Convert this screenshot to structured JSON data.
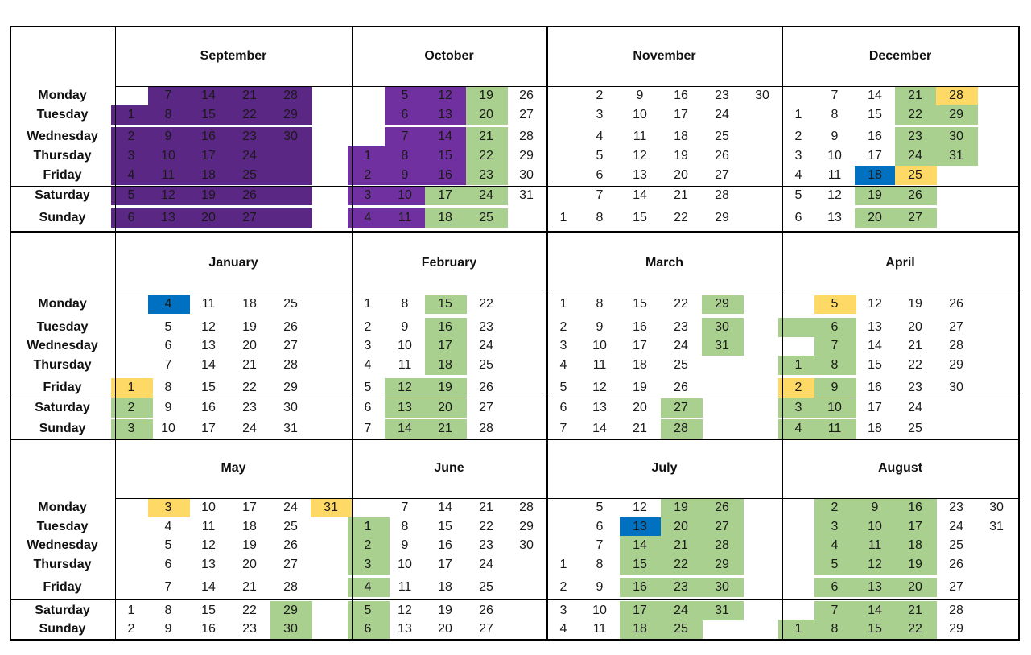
{
  "colors": {
    "dark_purple": "#5b2785",
    "purple": "#7030a0",
    "green": "#a9d08e",
    "yellow": "#ffd966",
    "blue": "#0070c0"
  },
  "day_labels": [
    "Monday",
    "Tuesday",
    "Wednesday",
    "Thursday",
    "Friday",
    "Saturday",
    "Sunday"
  ],
  "months": [
    {
      "name": "September",
      "weeks": [
        [
          "",
          "1",
          "2",
          "3",
          "4",
          "5",
          "6"
        ],
        [
          "7",
          "8",
          "9",
          "10",
          "11",
          "12",
          "13"
        ],
        [
          "14",
          "15",
          "16",
          "17",
          "18",
          "19",
          "20"
        ],
        [
          "21",
          "22",
          "23",
          "24",
          "25",
          "26",
          "27"
        ],
        [
          "28",
          "29",
          "30",
          "",
          "",
          "",
          ""
        ],
        [
          "",
          "",
          "",
          "",
          "",
          "",
          ""
        ]
      ],
      "highlights": [
        [
          null,
          "dark_purple",
          "dark_purple",
          "dark_purple",
          "dark_purple",
          "dark_purple",
          "dark_purple"
        ],
        [
          "dark_purple",
          "dark_purple",
          "dark_purple",
          "dark_purple",
          "dark_purple",
          "dark_purple",
          "dark_purple"
        ],
        [
          "dark_purple",
          "dark_purple",
          "dark_purple",
          "dark_purple",
          "dark_purple",
          "dark_purple",
          "dark_purple"
        ],
        [
          "dark_purple",
          "dark_purple",
          "dark_purple",
          "dark_purple",
          "dark_purple",
          "dark_purple",
          "dark_purple"
        ],
        [
          "dark_purple",
          "dark_purple",
          "dark_purple",
          "dark_purple",
          "dark_purple",
          "dark_purple",
          "dark_purple"
        ],
        [
          null,
          null,
          null,
          null,
          null,
          null,
          null
        ]
      ]
    },
    {
      "name": "October",
      "weeks": [
        [
          "",
          "",
          "",
          "1",
          "2",
          "3",
          "4"
        ],
        [
          "5",
          "6",
          "7",
          "8",
          "9",
          "10",
          "11"
        ],
        [
          "12",
          "13",
          "14",
          "15",
          "16",
          "17",
          "18"
        ],
        [
          "19",
          "20",
          "21",
          "22",
          "23",
          "24",
          "25"
        ],
        [
          "26",
          "27",
          "28",
          "29",
          "30",
          "31",
          ""
        ]
      ],
      "highlights": [
        [
          null,
          null,
          null,
          "purple",
          "purple",
          "purple",
          "purple"
        ],
        [
          "purple",
          "purple",
          "purple",
          "purple",
          "purple",
          "purple",
          "purple"
        ],
        [
          "purple",
          "purple",
          "purple",
          "purple",
          "purple",
          "green",
          "green"
        ],
        [
          "green",
          "green",
          "green",
          "green",
          "green",
          "green",
          "green"
        ],
        [
          null,
          null,
          null,
          null,
          null,
          null,
          null
        ]
      ]
    },
    {
      "name": "November",
      "weeks": [
        [
          "",
          "",
          "",
          "",
          "",
          "",
          "1"
        ],
        [
          "2",
          "3",
          "4",
          "5",
          "6",
          "7",
          "8"
        ],
        [
          "9",
          "10",
          "11",
          "12",
          "13",
          "14",
          "15"
        ],
        [
          "16",
          "17",
          "18",
          "19",
          "20",
          "21",
          "22"
        ],
        [
          "23",
          "24",
          "25",
          "26",
          "27",
          "28",
          "29"
        ],
        [
          "30",
          "",
          "",
          "",
          "",
          "",
          ""
        ]
      ],
      "highlights": [
        [
          null,
          null,
          null,
          null,
          null,
          null,
          null
        ],
        [
          null,
          null,
          null,
          null,
          null,
          null,
          null
        ],
        [
          null,
          null,
          null,
          null,
          null,
          null,
          null
        ],
        [
          null,
          null,
          null,
          null,
          null,
          null,
          null
        ],
        [
          null,
          null,
          null,
          null,
          null,
          null,
          null
        ],
        [
          null,
          null,
          null,
          null,
          null,
          null,
          null
        ]
      ]
    },
    {
      "name": "December",
      "weeks": [
        [
          "",
          "1",
          "2",
          "3",
          "4",
          "5",
          "6"
        ],
        [
          "7",
          "8",
          "9",
          "10",
          "11",
          "12",
          "13"
        ],
        [
          "14",
          "15",
          "16",
          "17",
          "18",
          "19",
          "20"
        ],
        [
          "21",
          "22",
          "23",
          "24",
          "25",
          "26",
          "27"
        ],
        [
          "28",
          "29",
          "30",
          "31",
          "",
          "",
          ""
        ]
      ],
      "highlights": [
        [
          null,
          null,
          null,
          null,
          null,
          null,
          null
        ],
        [
          null,
          null,
          null,
          null,
          null,
          null,
          null
        ],
        [
          null,
          null,
          null,
          null,
          "blue",
          "green",
          "green"
        ],
        [
          "green",
          "green",
          "green",
          "green",
          "yellow",
          "green",
          "green"
        ],
        [
          "yellow",
          "green",
          "green",
          "green",
          null,
          null,
          null
        ]
      ]
    },
    {
      "name": "January",
      "weeks": [
        [
          "",
          "",
          "",
          "",
          "1",
          "2",
          "3"
        ],
        [
          "4",
          "5",
          "6",
          "7",
          "8",
          "9",
          "10"
        ],
        [
          "11",
          "12",
          "13",
          "14",
          "15",
          "16",
          "17"
        ],
        [
          "18",
          "19",
          "20",
          "21",
          "22",
          "23",
          "24"
        ],
        [
          "25",
          "26",
          "27",
          "28",
          "29",
          "30",
          "31"
        ]
      ],
      "highlights": [
        [
          null,
          null,
          null,
          null,
          "yellow",
          "green",
          "green"
        ],
        [
          "blue",
          null,
          null,
          null,
          null,
          null,
          null
        ],
        [
          null,
          null,
          null,
          null,
          null,
          null,
          null
        ],
        [
          null,
          null,
          null,
          null,
          null,
          null,
          null
        ],
        [
          null,
          null,
          null,
          null,
          null,
          null,
          null
        ]
      ]
    },
    {
      "name": "February",
      "weeks": [
        [
          "1",
          "2",
          "3",
          "4",
          "5",
          "6",
          "7"
        ],
        [
          "8",
          "9",
          "10",
          "11",
          "12",
          "13",
          "14"
        ],
        [
          "15",
          "16",
          "17",
          "18",
          "19",
          "20",
          "21"
        ],
        [
          "22",
          "23",
          "24",
          "25",
          "26",
          "27",
          "28"
        ]
      ],
      "highlights": [
        [
          null,
          null,
          null,
          null,
          null,
          null,
          null
        ],
        [
          null,
          null,
          null,
          null,
          "green",
          "green",
          "green"
        ],
        [
          "green",
          "green",
          "green",
          "green",
          "green",
          "green",
          "green"
        ],
        [
          null,
          null,
          null,
          null,
          null,
          null,
          null
        ]
      ]
    },
    {
      "name": "March",
      "weeks": [
        [
          "1",
          "2",
          "3",
          "4",
          "5",
          "6",
          "7"
        ],
        [
          "8",
          "9",
          "10",
          "11",
          "12",
          "13",
          "14"
        ],
        [
          "15",
          "16",
          "17",
          "18",
          "19",
          "20",
          "21"
        ],
        [
          "22",
          "23",
          "24",
          "25",
          "26",
          "27",
          "28"
        ],
        [
          "29",
          "30",
          "31",
          "",
          "",
          "",
          ""
        ]
      ],
      "highlights": [
        [
          null,
          null,
          null,
          null,
          null,
          null,
          null
        ],
        [
          null,
          null,
          null,
          null,
          null,
          null,
          null
        ],
        [
          null,
          null,
          null,
          null,
          null,
          null,
          null
        ],
        [
          null,
          null,
          null,
          null,
          null,
          "green",
          "green"
        ],
        [
          "green",
          "green",
          "green",
          null,
          null,
          null,
          null
        ]
      ]
    },
    {
      "name": "April",
      "weeks": [
        [
          "",
          "",
          "",
          "1",
          "2",
          "3",
          "4"
        ],
        [
          "5",
          "6",
          "7",
          "8",
          "9",
          "10",
          "11"
        ],
        [
          "12",
          "13",
          "14",
          "15",
          "16",
          "17",
          "18"
        ],
        [
          "19",
          "20",
          "21",
          "22",
          "23",
          "24",
          "25"
        ],
        [
          "26",
          "27",
          "28",
          "29",
          "30",
          "",
          ""
        ]
      ],
      "highlights": [
        [
          null,
          "green",
          null,
          "green",
          "yellow",
          "green",
          "green"
        ],
        [
          "yellow",
          "green",
          "green",
          "green",
          "green",
          "green",
          "green"
        ],
        [
          null,
          null,
          null,
          null,
          null,
          null,
          null
        ],
        [
          null,
          null,
          null,
          null,
          null,
          null,
          null
        ],
        [
          null,
          null,
          null,
          null,
          null,
          null,
          null
        ]
      ]
    },
    {
      "name": "May",
      "weeks": [
        [
          "",
          "",
          "",
          "",
          "",
          "1",
          "2"
        ],
        [
          "3",
          "4",
          "5",
          "6",
          "7",
          "8",
          "9"
        ],
        [
          "10",
          "11",
          "12",
          "13",
          "14",
          "15",
          "16"
        ],
        [
          "17",
          "18",
          "19",
          "20",
          "21",
          "22",
          "23"
        ],
        [
          "24",
          "25",
          "26",
          "27",
          "28",
          "29",
          "30"
        ],
        [
          "31",
          "",
          "",
          "",
          "",
          "",
          ""
        ]
      ],
      "highlights": [
        [
          null,
          null,
          null,
          null,
          null,
          null,
          null
        ],
        [
          "yellow",
          null,
          null,
          null,
          null,
          null,
          null
        ],
        [
          null,
          null,
          null,
          null,
          null,
          null,
          null
        ],
        [
          null,
          null,
          null,
          null,
          null,
          null,
          null
        ],
        [
          null,
          null,
          null,
          null,
          null,
          "green",
          "green"
        ],
        [
          "yellow",
          null,
          null,
          null,
          null,
          null,
          null
        ]
      ]
    },
    {
      "name": "June",
      "weeks": [
        [
          "",
          "1",
          "2",
          "3",
          "4",
          "5",
          "6"
        ],
        [
          "7",
          "8",
          "9",
          "10",
          "11",
          "12",
          "13"
        ],
        [
          "14",
          "15",
          "16",
          "17",
          "18",
          "19",
          "20"
        ],
        [
          "21",
          "22",
          "23",
          "24",
          "25",
          "26",
          "27"
        ],
        [
          "28",
          "29",
          "30",
          "",
          "",
          "",
          ""
        ]
      ],
      "highlights": [
        [
          null,
          "green",
          "green",
          "green",
          "green",
          "green",
          "green"
        ],
        [
          null,
          null,
          null,
          null,
          null,
          null,
          null
        ],
        [
          null,
          null,
          null,
          null,
          null,
          null,
          null
        ],
        [
          null,
          null,
          null,
          null,
          null,
          null,
          null
        ],
        [
          null,
          null,
          null,
          null,
          null,
          null,
          null
        ]
      ]
    },
    {
      "name": "July",
      "weeks": [
        [
          "",
          "",
          "",
          "1",
          "2",
          "3",
          "4"
        ],
        [
          "5",
          "6",
          "7",
          "8",
          "9",
          "10",
          "11"
        ],
        [
          "12",
          "13",
          "14",
          "15",
          "16",
          "17",
          "18"
        ],
        [
          "19",
          "20",
          "21",
          "22",
          "23",
          "24",
          "25"
        ],
        [
          "26",
          "27",
          "28",
          "29",
          "30",
          "31",
          ""
        ]
      ],
      "highlights": [
        [
          null,
          null,
          null,
          null,
          null,
          null,
          null
        ],
        [
          null,
          null,
          null,
          null,
          null,
          null,
          null
        ],
        [
          null,
          "blue",
          "green",
          "green",
          "green",
          "green",
          "green"
        ],
        [
          "green",
          "green",
          "green",
          "green",
          "green",
          "green",
          "green"
        ],
        [
          "green",
          "green",
          "green",
          "green",
          "green",
          "green",
          null
        ]
      ]
    },
    {
      "name": "August",
      "weeks": [
        [
          "",
          "",
          "",
          "",
          "",
          "",
          "1"
        ],
        [
          "2",
          "3",
          "4",
          "5",
          "6",
          "7",
          "8"
        ],
        [
          "9",
          "10",
          "11",
          "12",
          "13",
          "14",
          "15"
        ],
        [
          "16",
          "17",
          "18",
          "19",
          "20",
          "21",
          "22"
        ],
        [
          "23",
          "24",
          "25",
          "26",
          "27",
          "28",
          "29"
        ],
        [
          "30",
          "31",
          "",
          "",
          "",
          "",
          ""
        ]
      ],
      "highlights": [
        [
          null,
          null,
          null,
          null,
          null,
          null,
          "green"
        ],
        [
          "green",
          "green",
          "green",
          "green",
          "green",
          "green",
          "green"
        ],
        [
          "green",
          "green",
          "green",
          "green",
          "green",
          "green",
          "green"
        ],
        [
          "green",
          "green",
          "green",
          "green",
          "green",
          "green",
          "green"
        ],
        [
          null,
          null,
          null,
          null,
          null,
          null,
          null
        ],
        [
          null,
          null,
          null,
          null,
          null,
          null,
          null
        ]
      ]
    }
  ]
}
